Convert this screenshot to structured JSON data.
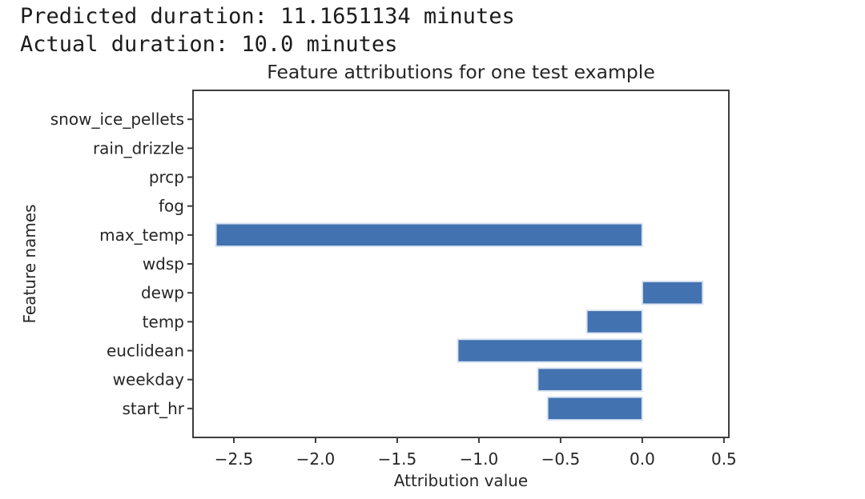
{
  "console": {
    "predicted_line": "Predicted duration: 11.1651134 minutes",
    "actual_line": "Actual duration: 10.0 minutes"
  },
  "chart_data": {
    "type": "bar",
    "orientation": "horizontal",
    "title": "Feature attributions for one test example",
    "xlabel": "Attribution value",
    "ylabel": "Feature names",
    "categories_top_to_bottom": [
      "snow_ice_pellets",
      "rain_drizzle",
      "prcp",
      "fog",
      "max_temp",
      "wdsp",
      "dewp",
      "temp",
      "euclidean",
      "weekday",
      "start_hr"
    ],
    "values": [
      0,
      0,
      0,
      0,
      -2.61,
      0,
      0.37,
      -0.34,
      -1.13,
      -0.64,
      -0.58
    ],
    "xlim": [
      -2.75,
      0.53
    ],
    "xticks": [
      -2.5,
      -2.0,
      -1.5,
      -1.0,
      -0.5,
      0.0,
      0.5
    ],
    "xtick_labels": [
      "−2.5",
      "−2.0",
      "−1.5",
      "−1.0",
      "−0.5",
      "0.0",
      "0.5"
    ],
    "grid": false,
    "legend": null,
    "colors": {
      "bar_fill": "#4272b0",
      "bar_edge": "#dbe4f1",
      "axis": "#3d3d3d",
      "text": "#262626"
    }
  }
}
